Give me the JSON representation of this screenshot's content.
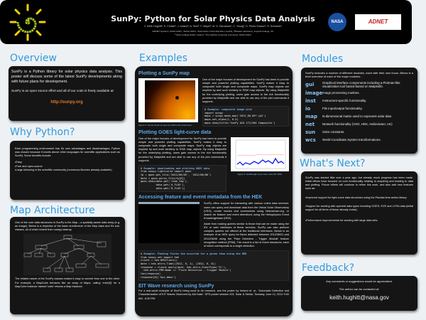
{
  "header": {
    "title": "SunPy: Python for Solar Physics Data Analysis",
    "authors": "V. Keith Hughitt¹, S. Christe², J. Ireland¹, A. Shih², F. Mayer³, M. D. Earnshaw⁴, C. Young¹, D. Perez-Suarez⁵, R. Schwartz⁶",
    "affil1": "¹ADNET Systems, NASA GSFC, ²NASA GSFC, ³Technische Universitat Wien, Austria, ⁴Blackett Laboratory, Imperial College, UK,",
    "affil2": "⁵Trinity College Dublin, Ireland, ⁶The Catholic University of America, NASA GSFC",
    "logo_nasa": "NASA",
    "logo_adnet": "ADNET"
  },
  "overview": {
    "title": "Overview",
    "p1": "SunPy is a Python library for solar physics data analysis. This poster will discuss some of the latest SunPy developments along with future plans for development.",
    "p2": "SunPy is an open source effort and all of our code is freely available at:",
    "link": "http://sunpy.org",
    "link_color": "#e07a2a"
  },
  "why": {
    "title": "Why Python?",
    "p1": "Each programming environment has it's own advantages and disadvantages. Python was chosen because it excels above other languages for scientific applications such as SunPy. Some benefits include:",
    "items": [
      "•Easy",
      "•Free and open-source",
      "•Large following in the scientific community (numerous libraries already available)"
    ]
  },
  "map": {
    "title": "Map Architecture",
    "p1": "One of the core data structures in SunPy is the Map – a spatially-aware data array (e.g. an image). Below is a depiction of the basic architecture of the Map class and it's sub-classes, all of which inherit from numpy.ndarray.",
    "p2": "The related nature of the SunPy classes makes it easy to convert from one to the other. For example, a MapCube behaves like an array of Maps; calling 'cube[0]' for a MapCube instance named 'cube' returns a Map instance."
  },
  "examples": {
    "title": "Examples",
    "s1": {
      "title": "Plotting a SunPy map",
      "text": "One of the major focuses of development for SunPy has been to provide simple and powerful plotting capabilities. SunPy makes it easy to composite both single and composite maps. SunPy map objects are inspired by and work similarly to SSW map objects. By using Matplotlib for the underlying plotting, users gain access to the rich functionality provided by Matplotlib and are able to use any of the plot commands it supports.",
      "caption": "Figure 2: Venus transit as seen by SDO's AIA instrument.",
      "code": [
        "# Example: composite image plot",
        "import sunpy",
        "maps = sunpy.make_map('2012_06_05*.jp2')",
        "maps.set_alpha(1, 0.5)",
        "maps.show(title='SunPy AIA 171/304 Composite')"
      ]
    },
    "s2": {
      "title": "Plotting GOES light-curve data",
      "text": "One of the major focuses of development for SunPy has been to provide simple and powerful plotting capabilities. SunPy makes it easy to composite both single and composite maps. SunPy map objects are inspired by and work similarly to SSW map objects. By using Matplotlib for the underlying plotting, users gain access to the rich functionality provided by Matplotlib and are able to use any of the plot commands it supports.",
      "caption": "Figure 3: GOES light curve from June 05, 2012.",
      "code": [
        "# Example: downloading and plotting GOES data",
        "from sunpy.lightcurve import goes",
        "fp = goes.get_file('2012/06/05', '2012/06/06')",
        "data = goes.parse_file(fp[0])",
        "goes.show(data.get('time_tag'),",
        "          data.get('A_FLUX'),",
        "          data.get('B_FLUX'))"
      ]
    },
    "s3": {
      "title": "Accessing feature and event metadata from the HEK",
      "text1": "SunPy offers support for interacting with various online data services: users can query and download data from the Virtual Solar Observatory (VSO), create movies and screenshots using Helioviewer.org, or search for feature and event detections using the Heliophysics Event Knowledgebase (HEK).",
      "text2": "Aside from making queries similar to those that can be made using the IDL or web interfaces of these services, SunPy can also perform complex queries not offered at the traditional interfaces. Below is an example of an HEK query for flares detected between 2012/06/01 and 2012/06/06 using the 'Flare Detective - Trigger Module' feature recognition method (FRM). The result is a list of event structures, each of which corresponds to a single detection.",
      "code": [
        "# Example: Finding flares the occurred for a given time using the HEK",
        "from sunpy.net import hek",
        "client = hek.HEKClient()",
        "date = hek.attrs.Time((2012, 6, 1), (2012, 6, 6))",
        "response = client.query(date, hek.attrs.EventType('FL'),",
        "  hek.attrs.FRM.Name == 'Flare Detective - Trigger Module')",
        "len(response)",
        "response[0]['hpc_bbox']"
      ]
    },
    "s4": {
      "title": "EIT Wave research using SunPy",
      "text": "For a real-world example of SunPy being used to do research, see the poster by Ireland et. al., \"Automatic Detection and Characterization of EIT Waves Observed by AIA Data\", SPD poster session 201: Solar & Stellar, Tuesday, June 12, 2012 9:00 AM - 6:30 PM."
    }
  },
  "modules": {
    "title": "Modules",
    "intro": "SunPy includes a number of different modules, each with their own focus. Below is a brief overview of each of the major modules .",
    "items": [
      {
        "name": "gui",
        "desc": "Graphical interface components including a Plotman-like visualization tool based based on Matplotlib."
      },
      {
        "name": "image",
        "desc": "Image processing routines."
      },
      {
        "name": "inst",
        "desc": "Instrument-specific functionality."
      },
      {
        "name": "io",
        "desc": "File input/output functionality."
      },
      {
        "name": "map",
        "desc": "N-dimensional matrix used to represent solar data"
      },
      {
        "name": "net",
        "desc": "Network functionality (VSO, HEK, Helioviewer, etc)"
      },
      {
        "name": "sun",
        "desc": "Solar constants."
      },
      {
        "name": "wcs",
        "desc": "World Coordinate System transformations."
      }
    ]
  },
  "next": {
    "title": "What's Next?",
    "p1": "SunPy was started little over a year ago, but already much progress has been made. Initial efforts have focused on core functionality relating to acquiring and reading in data and plotting. Future efforts will continue to refine this work, and also add new features such as:",
    "items": [
      "•Improved support for light-curve data structures using the Pandas time-series library.",
      "•Support for working with spectral data types including GOES, EVE and LYRA data (initial support for all three of these already exists)",
      "•Performance improvements for working with large data sets."
    ]
  },
  "feedback": {
    "title": "Feedback?",
    "p1": "Any comments or suggestions would be appreciated.",
    "p2": "The author can be contacted at:",
    "email": "keith.hughitt@nasa.gov"
  },
  "colors": {
    "heading": "#2f9be0",
    "panel": "#151515",
    "background": "#eef1f4"
  }
}
